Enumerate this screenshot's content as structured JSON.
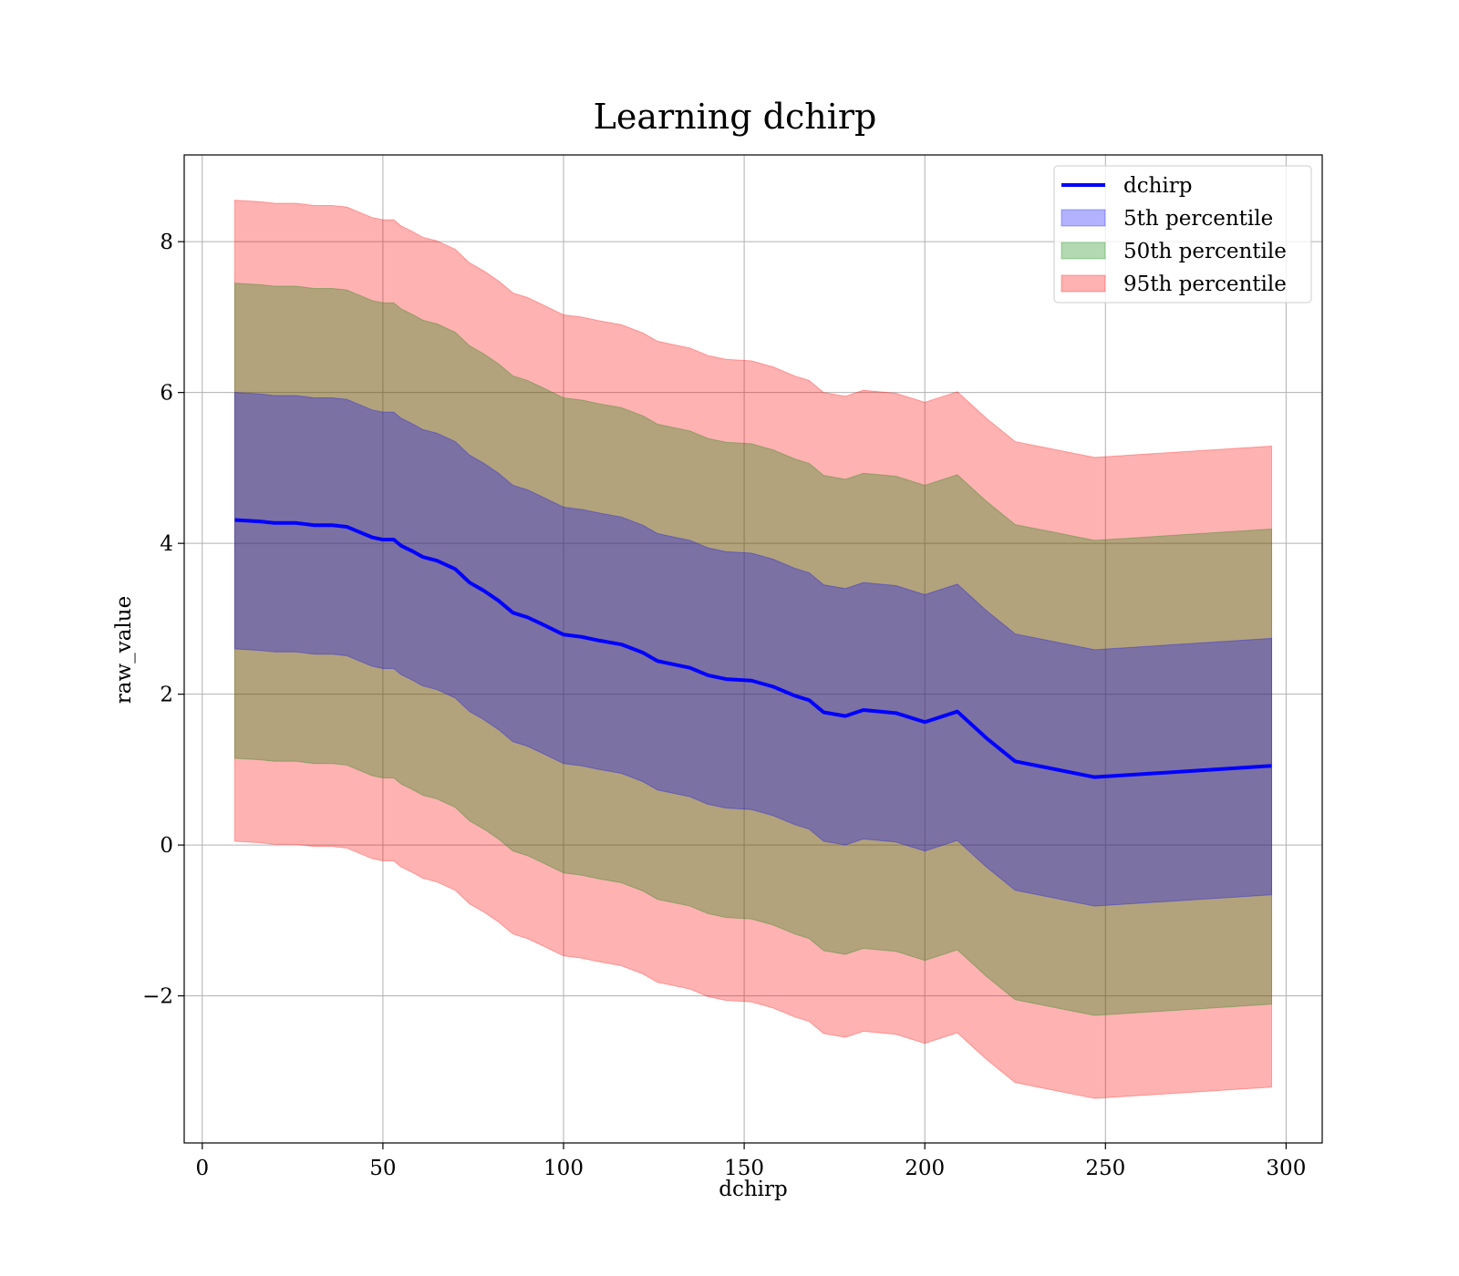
{
  "chart_data": {
    "type": "area",
    "title": "Learning dchirp",
    "xlabel": "dchirp",
    "ylabel": "raw_value",
    "xlim": [
      -5,
      310
    ],
    "ylim": [
      -3.95,
      9.15
    ],
    "xticks": [
      0,
      50,
      100,
      150,
      200,
      250,
      300
    ],
    "xtick_labels": [
      "0",
      "50",
      "100",
      "150",
      "200",
      "250",
      "300"
    ],
    "yticks": [
      -2,
      0,
      2,
      4,
      6,
      8
    ],
    "ytick_labels": [
      "−2",
      "0",
      "2",
      "4",
      "6",
      "8"
    ],
    "grid": true,
    "legend_position": "top-right",
    "x": [
      9,
      16,
      20,
      26,
      31,
      36,
      40,
      43,
      47,
      50,
      53,
      55,
      58,
      61,
      65,
      70,
      74,
      78,
      82,
      86,
      90,
      94,
      100,
      105,
      110,
      116,
      122,
      126,
      130,
      135,
      140,
      145,
      152,
      158,
      164,
      168,
      172,
      178,
      183,
      192,
      200,
      209,
      217,
      225,
      247,
      296
    ],
    "series": [
      {
        "name": "dchirp",
        "kind": "line",
        "color": "#0000ff",
        "values": [
          4.31,
          4.29,
          4.27,
          4.27,
          4.24,
          4.24,
          4.22,
          4.16,
          4.08,
          4.05,
          4.05,
          3.97,
          3.9,
          3.82,
          3.77,
          3.66,
          3.48,
          3.37,
          3.24,
          3.08,
          3.02,
          2.93,
          2.79,
          2.76,
          2.71,
          2.66,
          2.55,
          2.44,
          2.4,
          2.35,
          2.25,
          2.2,
          2.18,
          2.1,
          1.98,
          1.92,
          1.76,
          1.71,
          1.79,
          1.75,
          1.63,
          1.77,
          1.42,
          1.11,
          0.9,
          1.05
        ]
      },
      {
        "name": "5th percentile",
        "kind": "band",
        "color": "#0000ff",
        "lower": [
          2.6,
          2.58,
          2.56,
          2.56,
          2.53,
          2.53,
          2.51,
          2.45,
          2.37,
          2.34,
          2.34,
          2.26,
          2.19,
          2.11,
          2.06,
          1.95,
          1.77,
          1.66,
          1.53,
          1.37,
          1.31,
          1.22,
          1.08,
          1.05,
          1.0,
          0.95,
          0.84,
          0.73,
          0.69,
          0.64,
          0.54,
          0.49,
          0.47,
          0.39,
          0.27,
          0.21,
          0.05,
          0.0,
          0.08,
          0.04,
          -0.08,
          0.06,
          -0.29,
          -0.6,
          -0.81,
          -0.66
        ],
        "upper": [
          6.0,
          5.98,
          5.96,
          5.96,
          5.93,
          5.93,
          5.91,
          5.85,
          5.77,
          5.74,
          5.74,
          5.66,
          5.59,
          5.51,
          5.46,
          5.35,
          5.17,
          5.06,
          4.93,
          4.77,
          4.71,
          4.62,
          4.48,
          4.45,
          4.4,
          4.35,
          4.24,
          4.13,
          4.09,
          4.04,
          3.94,
          3.89,
          3.87,
          3.79,
          3.67,
          3.61,
          3.45,
          3.4,
          3.48,
          3.44,
          3.32,
          3.46,
          3.11,
          2.8,
          2.59,
          2.74
        ]
      },
      {
        "name": "50th percentile",
        "kind": "band",
        "color": "#008000",
        "lower": [
          1.15,
          1.13,
          1.11,
          1.11,
          1.08,
          1.08,
          1.06,
          1.0,
          0.92,
          0.89,
          0.89,
          0.81,
          0.74,
          0.66,
          0.61,
          0.5,
          0.32,
          0.21,
          0.08,
          -0.08,
          -0.14,
          -0.23,
          -0.37,
          -0.4,
          -0.45,
          -0.5,
          -0.61,
          -0.72,
          -0.76,
          -0.81,
          -0.91,
          -0.96,
          -0.98,
          -1.06,
          -1.18,
          -1.24,
          -1.4,
          -1.45,
          -1.37,
          -1.41,
          -1.53,
          -1.39,
          -1.74,
          -2.05,
          -2.26,
          -2.11
        ],
        "upper": [
          7.45,
          7.43,
          7.41,
          7.41,
          7.38,
          7.38,
          7.36,
          7.3,
          7.22,
          7.19,
          7.19,
          7.11,
          7.04,
          6.96,
          6.91,
          6.8,
          6.62,
          6.51,
          6.38,
          6.22,
          6.16,
          6.07,
          5.93,
          5.9,
          5.85,
          5.8,
          5.69,
          5.58,
          5.54,
          5.49,
          5.39,
          5.34,
          5.32,
          5.24,
          5.12,
          5.06,
          4.9,
          4.85,
          4.93,
          4.89,
          4.77,
          4.91,
          4.56,
          4.25,
          4.04,
          4.19
        ]
      },
      {
        "name": "95th percentile",
        "kind": "band",
        "color": "#ff0000",
        "lower": [
          0.05,
          0.03,
          0.01,
          0.01,
          -0.02,
          -0.02,
          -0.04,
          -0.1,
          -0.18,
          -0.21,
          -0.21,
          -0.29,
          -0.36,
          -0.44,
          -0.49,
          -0.6,
          -0.78,
          -0.89,
          -1.02,
          -1.18,
          -1.24,
          -1.33,
          -1.47,
          -1.5,
          -1.55,
          -1.6,
          -1.71,
          -1.82,
          -1.86,
          -1.91,
          -2.01,
          -2.06,
          -2.08,
          -2.16,
          -2.28,
          -2.34,
          -2.5,
          -2.55,
          -2.47,
          -2.51,
          -2.63,
          -2.49,
          -2.84,
          -3.15,
          -3.36,
          -3.21
        ],
        "upper": [
          8.55,
          8.53,
          8.51,
          8.51,
          8.48,
          8.48,
          8.46,
          8.4,
          8.32,
          8.29,
          8.29,
          8.21,
          8.14,
          8.06,
          8.01,
          7.9,
          7.72,
          7.61,
          7.48,
          7.32,
          7.26,
          7.17,
          7.03,
          7.0,
          6.95,
          6.9,
          6.79,
          6.68,
          6.64,
          6.59,
          6.49,
          6.44,
          6.42,
          6.34,
          6.22,
          6.16,
          6.0,
          5.95,
          6.03,
          5.99,
          5.87,
          6.01,
          5.66,
          5.35,
          5.14,
          5.29
        ]
      }
    ]
  }
}
